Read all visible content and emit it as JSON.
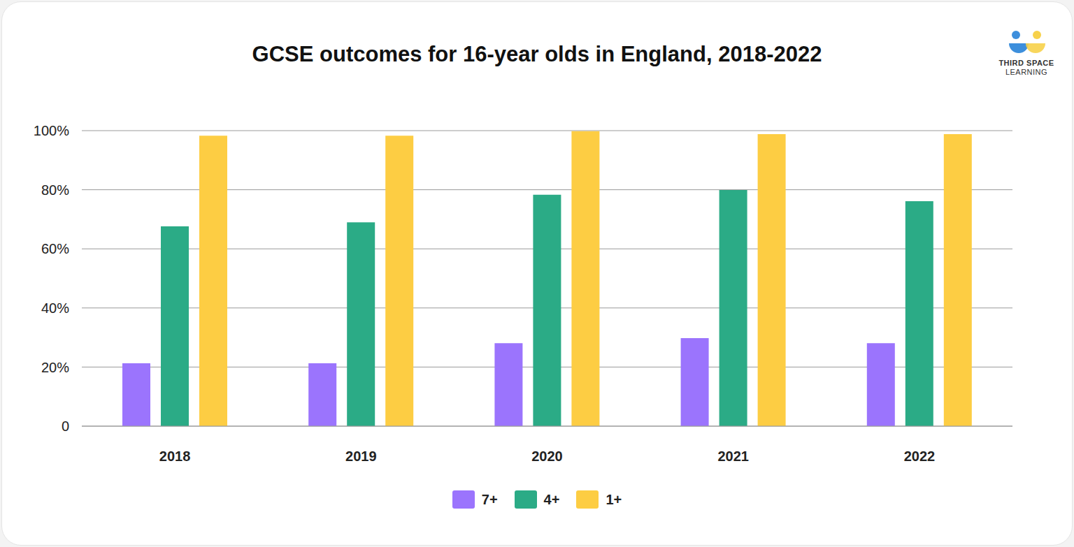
{
  "chart_data": {
    "type": "bar",
    "title": "GCSE outcomes for 16-year olds in England, 2018-2022",
    "categories": [
      "2018",
      "2019",
      "2020",
      "2021",
      "2022"
    ],
    "series": [
      {
        "name": "7+",
        "color": "#9b74fd",
        "values": [
          21.3,
          21.3,
          28.1,
          29.8,
          28.1
        ]
      },
      {
        "name": "4+",
        "color": "#2bab86",
        "values": [
          67.6,
          69.0,
          78.3,
          79.9,
          76.1
        ]
      },
      {
        "name": "1+",
        "color": "#fdcd43",
        "values": [
          98.3,
          98.3,
          99.8,
          98.8,
          98.8
        ]
      }
    ],
    "ylim": [
      0,
      100
    ],
    "yticks": [
      0,
      {
        "value": 20,
        "label": "20%"
      },
      {
        "value": 40,
        "label": "40%"
      },
      {
        "value": 60,
        "label": "60%"
      },
      {
        "value": 80,
        "label": "80%"
      },
      {
        "value": 100,
        "label": "100%"
      }
    ],
    "grid": true,
    "legend": "bottom"
  },
  "logo": [
    "THIRD SPACE",
    "LEARNING"
  ]
}
